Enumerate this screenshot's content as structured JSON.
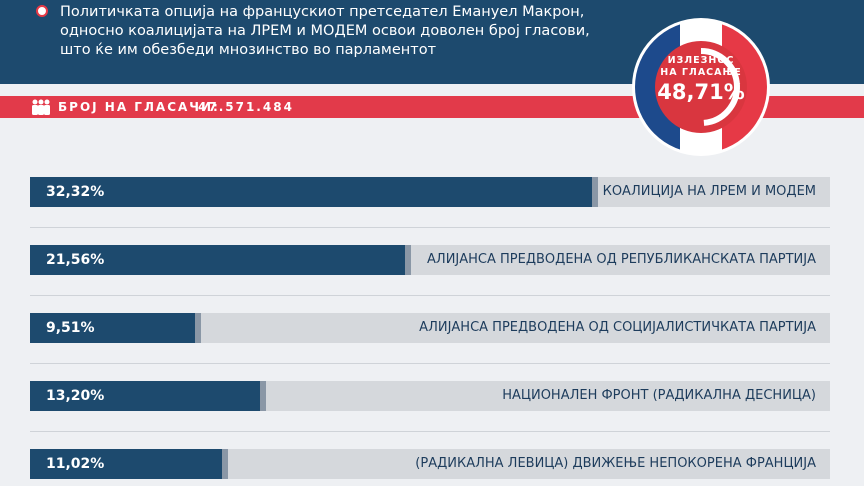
{
  "header": {
    "lines": [
      "Политичката опција на францускиот претседател Емануел Макрон,",
      "односно коалицијата на ЛРЕМ и МОДЕМ освои доволен број гласови,",
      "што ќе им обезбеди мнозинство во парламентот"
    ]
  },
  "voters": {
    "label": "БРОЈ НА ГЛАСАЧИ:",
    "value": "47.571.484"
  },
  "turnout": {
    "label_line1": "ИЗЛЕЗНОС",
    "label_line2": "НА ГЛАСАЊЕ",
    "value": "48,71%",
    "fraction": 0.4871
  },
  "colors": {
    "navy": "#1d4a6e",
    "red": "#e23a4a",
    "track": "#d5d8dc",
    "white": "#ffffff"
  },
  "chart_data": {
    "type": "bar",
    "orientation": "horizontal",
    "scale_max": 46,
    "categories": [
      "КОАЛИЦИЈА НА ЛРЕМ И МОДЕМ",
      "АЛИЈАНСА ПРЕДВОДЕНА ОД РЕПУБЛИКАНСКАТА ПАРТИЈА",
      "АЛИЈАНСА ПРЕДВОДЕНА ОД СОЦИЈАЛИСТИЧКАТА ПАРТИЈА",
      "НАЦИОНАЛЕН ФРОНТ (РАДИКАЛНА ДЕСНИЦА)",
      "(РАДИКАЛНА ЛЕВИЦА) ДВИЖЕЊЕ НЕПОКОРЕНА ФРАНЦИЈА"
    ],
    "values": [
      32.32,
      21.56,
      9.51,
      13.2,
      11.02
    ],
    "value_labels": [
      "32,32%",
      "21,56%",
      "9,51%",
      "13,20%",
      "11,02%"
    ]
  }
}
